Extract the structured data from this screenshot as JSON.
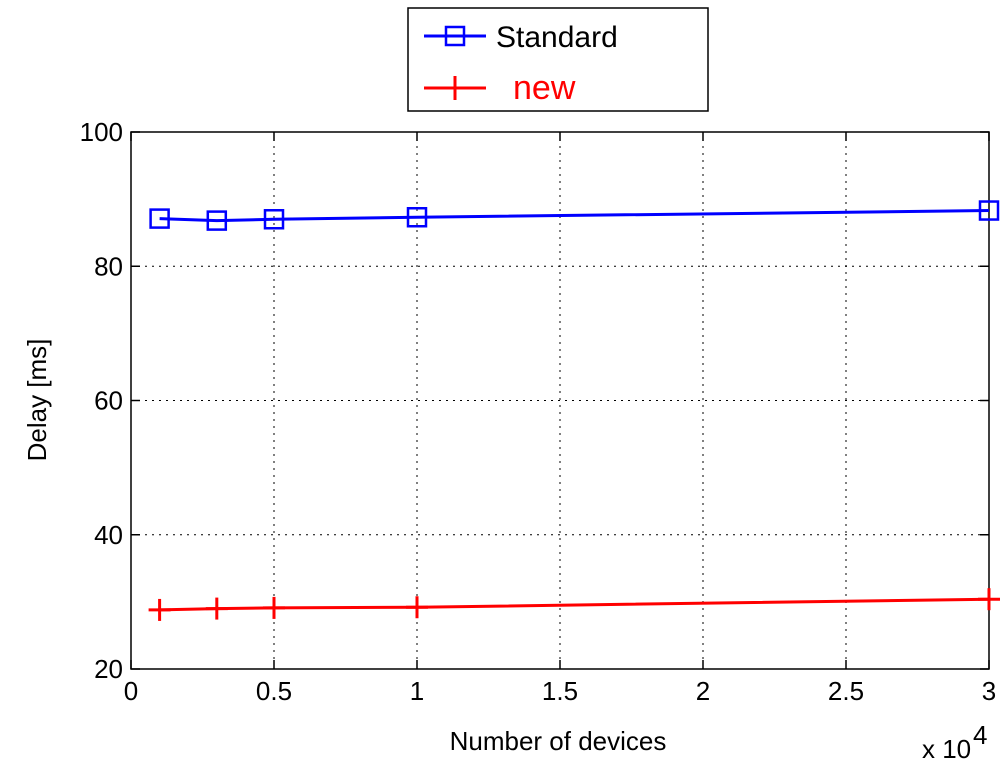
{
  "chart_data": {
    "type": "line",
    "title": "",
    "xlabel": "Number of devices",
    "ylabel": "Delay [ms]",
    "x_multiplier_label": "x 10",
    "x_multiplier_exponent": "4",
    "xlim": [
      0,
      30000
    ],
    "ylim": [
      20,
      100
    ],
    "x_ticks": [
      0,
      5000,
      10000,
      15000,
      20000,
      25000,
      30000
    ],
    "x_tick_labels": [
      "0",
      "0.5",
      "1",
      "1.5",
      "2",
      "2.5",
      "3"
    ],
    "y_ticks": [
      20,
      40,
      60,
      80,
      100
    ],
    "y_tick_labels": [
      "20",
      "40",
      "60",
      "80",
      "100"
    ],
    "grid": true,
    "legend_position": "top-center, outside plot",
    "x": [
      1000,
      3000,
      5000,
      10000,
      30000
    ],
    "series": [
      {
        "name": "Standard",
        "color": "#0000ff",
        "marker": "square",
        "values": [
          87.1,
          86.8,
          87.0,
          87.3,
          88.3
        ]
      },
      {
        "name": "new",
        "color": "#ff0000",
        "marker": "plus",
        "values": [
          28.8,
          29.0,
          29.1,
          29.2,
          30.4
        ]
      }
    ]
  }
}
